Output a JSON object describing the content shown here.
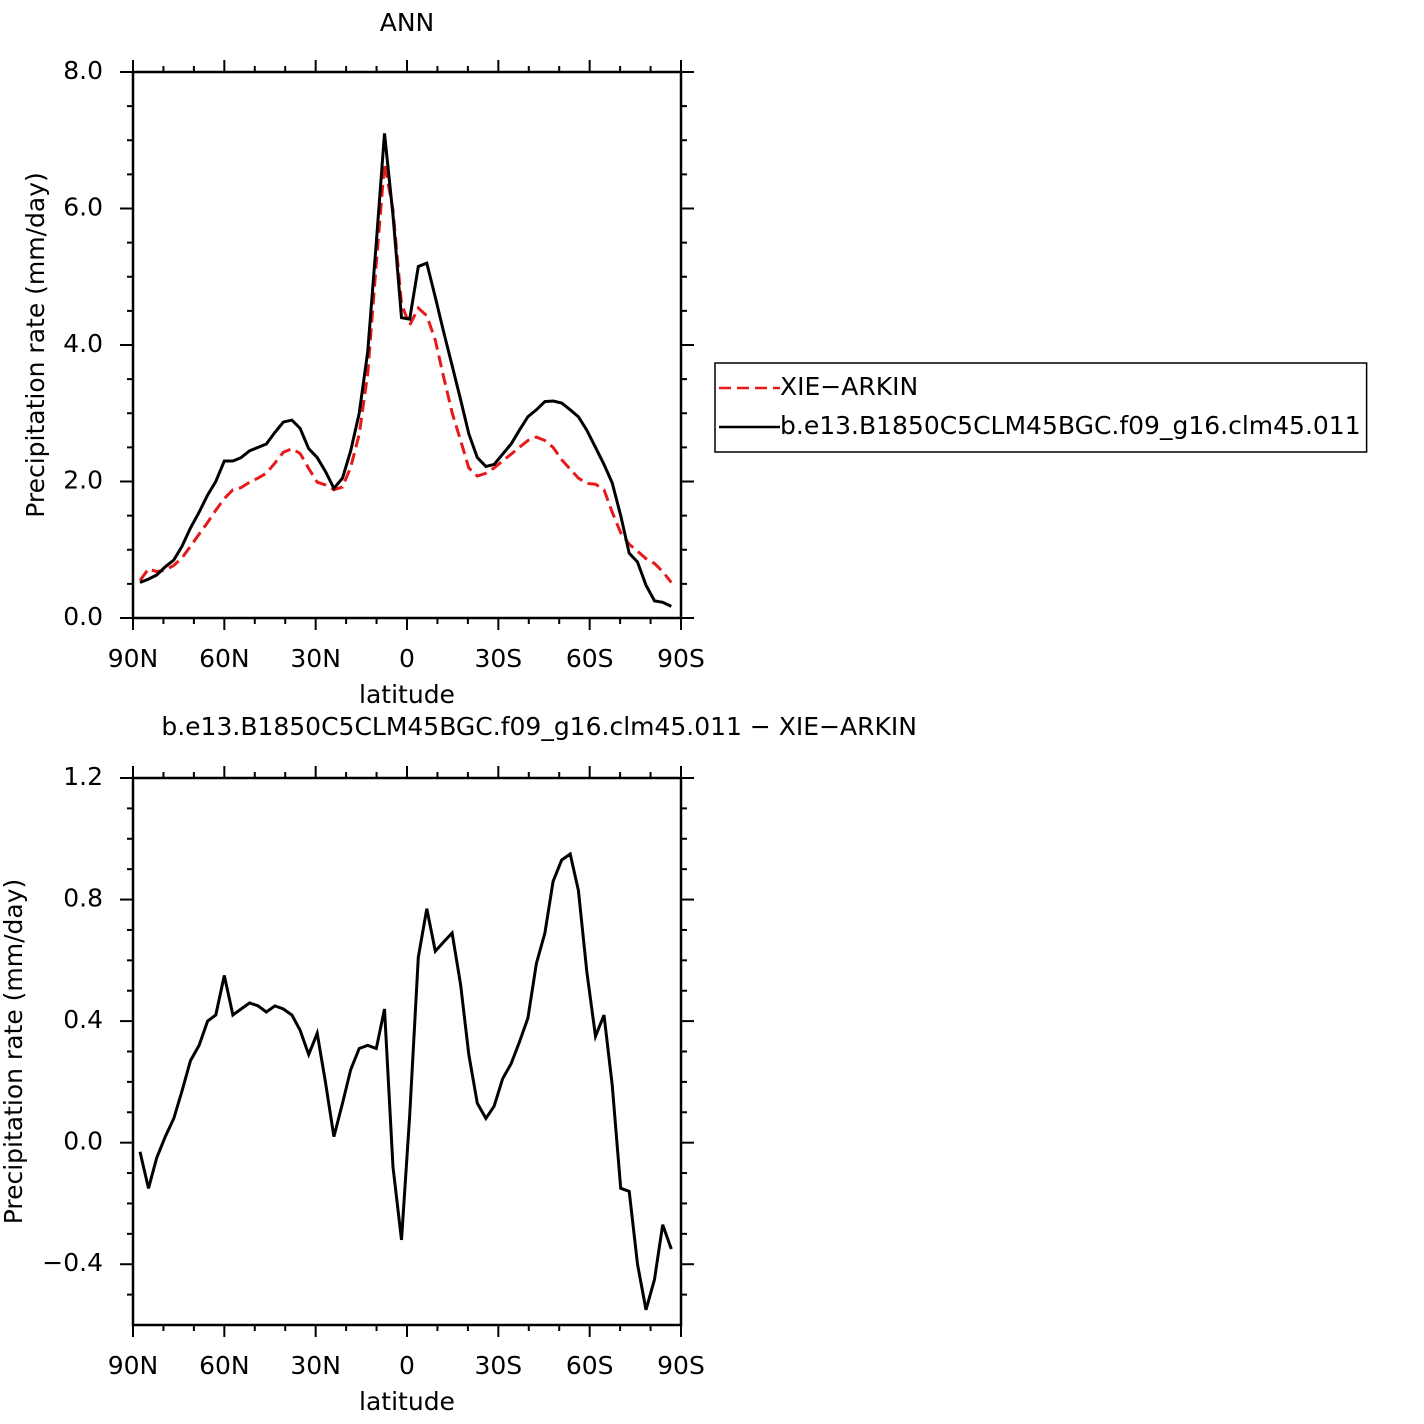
{
  "chart_data": [
    {
      "type": "line",
      "title": "ANN",
      "xlabel": "latitude",
      "ylabel": "Precipitation rate (mm/day)",
      "x": [
        87.7,
        84.9,
        82.2,
        79.4,
        76.6,
        73.9,
        71.1,
        68.3,
        65.5,
        62.8,
        60.0,
        57.2,
        54.5,
        51.7,
        48.9,
        46.2,
        43.4,
        40.6,
        37.8,
        35.1,
        32.3,
        29.5,
        26.8,
        24.0,
        21.2,
        18.5,
        15.7,
        12.9,
        10.1,
        7.4,
        4.6,
        1.8,
        -0.9,
        -3.7,
        -6.5,
        -9.3,
        -12.0,
        -14.8,
        -17.6,
        -20.3,
        -23.1,
        -25.9,
        -28.6,
        -31.4,
        -34.2,
        -36.9,
        -39.7,
        -42.5,
        -45.3,
        -48.0,
        -50.8,
        -53.6,
        -56.3,
        -59.1,
        -61.9,
        -64.7,
        -67.4,
        -70.2,
        -73.0,
        -75.7,
        -78.5,
        -81.3,
        -84.0,
        -86.8
      ],
      "series": [
        {
          "name": "XIE−ARKIN",
          "color": "#e8191a",
          "style": "dashed",
          "values": [
            0.55,
            0.72,
            0.68,
            0.7,
            0.77,
            0.88,
            1.05,
            1.23,
            1.4,
            1.58,
            1.75,
            1.88,
            1.91,
            1.99,
            2.05,
            2.12,
            2.27,
            2.43,
            2.48,
            2.41,
            2.19,
            1.99,
            1.95,
            1.88,
            1.92,
            2.21,
            2.69,
            3.58,
            5.19,
            6.66,
            5.98,
            4.6,
            4.29,
            4.54,
            4.43,
            4.07,
            3.54,
            3.01,
            2.6,
            2.2,
            2.08,
            2.12,
            2.2,
            2.3,
            2.4,
            2.5,
            2.6,
            2.65,
            2.6,
            2.5,
            2.32,
            2.18,
            2.05,
            1.97,
            1.96,
            1.88,
            1.55,
            1.25,
            1.08,
            0.98,
            0.87,
            0.8,
            0.68,
            0.52
          ]
        },
        {
          "name": "b.e13.B1850C5CLM45BGC.f09_g16.clm45.011",
          "color": "#000000",
          "style": "solid",
          "values": [
            0.52,
            0.57,
            0.63,
            0.75,
            0.85,
            1.05,
            1.32,
            1.55,
            1.8,
            2.0,
            2.3,
            2.3,
            2.35,
            2.45,
            2.5,
            2.55,
            2.72,
            2.87,
            2.9,
            2.78,
            2.48,
            2.35,
            2.15,
            1.9,
            2.05,
            2.45,
            3.0,
            3.9,
            5.5,
            7.1,
            5.9,
            4.4,
            4.38,
            5.15,
            5.2,
            4.7,
            4.2,
            3.7,
            3.2,
            2.7,
            2.35,
            2.22,
            2.25,
            2.4,
            2.55,
            2.75,
            2.95,
            3.05,
            3.17,
            3.18,
            3.15,
            3.05,
            2.95,
            2.75,
            2.5,
            2.25,
            1.98,
            1.5,
            0.95,
            0.82,
            0.48,
            0.25,
            0.23,
            0.17
          ]
        }
      ],
      "xlim": [
        90,
        -90
      ],
      "xticks": [
        {
          "value": 90,
          "label": "90N"
        },
        {
          "value": 60,
          "label": "60N"
        },
        {
          "value": 30,
          "label": "30N"
        },
        0,
        {
          "value": -30,
          "label": "30S"
        },
        {
          "value": -60,
          "label": "60S"
        },
        {
          "value": -90,
          "label": "90S"
        }
      ],
      "xminorticks": [
        80,
        70,
        50,
        40,
        20,
        10,
        -10,
        -20,
        -40,
        -50,
        -70,
        -80
      ],
      "ylim": [
        0,
        8
      ],
      "yticks": [
        {
          "value": 0,
          "label": "0.0"
        },
        {
          "value": 2,
          "label": "2.0"
        },
        {
          "value": 4,
          "label": "4.0"
        },
        {
          "value": 6,
          "label": "6.0"
        },
        {
          "value": 8,
          "label": "8.0"
        }
      ],
      "yminorticks": [
        0.5,
        1,
        1.5,
        2.5,
        3,
        3.5,
        4.5,
        5,
        5.5,
        6.5,
        7,
        7.5
      ],
      "legend": "right"
    },
    {
      "type": "line",
      "title": "b.e13.B1850C5CLM45BGC.f09_g16.clm45.011 − XIE−ARKIN",
      "xlabel": "latitude",
      "ylabel": "Precipitation rate (mm/day)",
      "x": [
        87.7,
        84.9,
        82.2,
        79.4,
        76.6,
        73.9,
        71.1,
        68.3,
        65.5,
        62.8,
        60.0,
        57.2,
        54.5,
        51.7,
        48.9,
        46.2,
        43.4,
        40.6,
        37.8,
        35.1,
        32.3,
        29.5,
        26.8,
        24.0,
        21.2,
        18.5,
        15.7,
        12.9,
        10.1,
        7.4,
        4.6,
        1.8,
        -0.9,
        -3.7,
        -6.5,
        -9.3,
        -12.0,
        -14.8,
        -17.6,
        -20.3,
        -23.1,
        -25.9,
        -28.6,
        -31.4,
        -34.2,
        -36.9,
        -39.7,
        -42.5,
        -45.3,
        -48.0,
        -50.8,
        -53.6,
        -56.3,
        -59.1,
        -61.9,
        -64.7,
        -67.4,
        -70.2,
        -73.0,
        -75.7,
        -78.5,
        -81.3,
        -84.0,
        -86.8
      ],
      "values": [
        -0.03,
        -0.15,
        -0.05,
        0.02,
        0.08,
        0.17,
        0.27,
        0.32,
        0.4,
        0.42,
        0.55,
        0.42,
        0.44,
        0.46,
        0.45,
        0.43,
        0.45,
        0.44,
        0.42,
        0.37,
        0.29,
        0.36,
        0.2,
        0.02,
        0.13,
        0.24,
        0.31,
        0.32,
        0.31,
        0.44,
        -0.08,
        -0.32,
        0.09,
        0.61,
        0.77,
        0.63,
        0.66,
        0.69,
        0.52,
        0.29,
        0.13,
        0.08,
        0.12,
        0.21,
        0.26,
        0.33,
        0.41,
        0.59,
        0.69,
        0.86,
        0.93,
        0.95,
        0.83,
        0.56,
        0.35,
        0.42,
        0.19,
        -0.15,
        -0.16,
        -0.4,
        -0.55,
        -0.45,
        -0.27,
        -0.35
      ],
      "color": "#000000",
      "xlim": [
        90,
        -90
      ],
      "xticks": [
        {
          "value": 90,
          "label": "90N"
        },
        {
          "value": 60,
          "label": "60N"
        },
        {
          "value": 30,
          "label": "30N"
        },
        0,
        {
          "value": -30,
          "label": "30S"
        },
        {
          "value": -60,
          "label": "60S"
        },
        {
          "value": -90,
          "label": "90S"
        }
      ],
      "xminorticks": [
        80,
        70,
        50,
        40,
        20,
        10,
        -10,
        -20,
        -40,
        -50,
        -70,
        -80
      ],
      "ylim": [
        -0.6,
        1.2
      ],
      "yticks": [
        {
          "value": -0.4,
          "label": "−0.4"
        },
        {
          "value": 0,
          "label": "0.0"
        },
        {
          "value": 0.4,
          "label": "0.4"
        },
        {
          "value": 0.8,
          "label": "0.8"
        },
        {
          "value": 1.2,
          "label": "1.2"
        }
      ],
      "yminorticks": [
        -0.5,
        -0.3,
        -0.2,
        -0.1,
        0.1,
        0.2,
        0.3,
        0.5,
        0.6,
        0.7,
        0.9,
        1.0,
        1.1
      ]
    }
  ]
}
